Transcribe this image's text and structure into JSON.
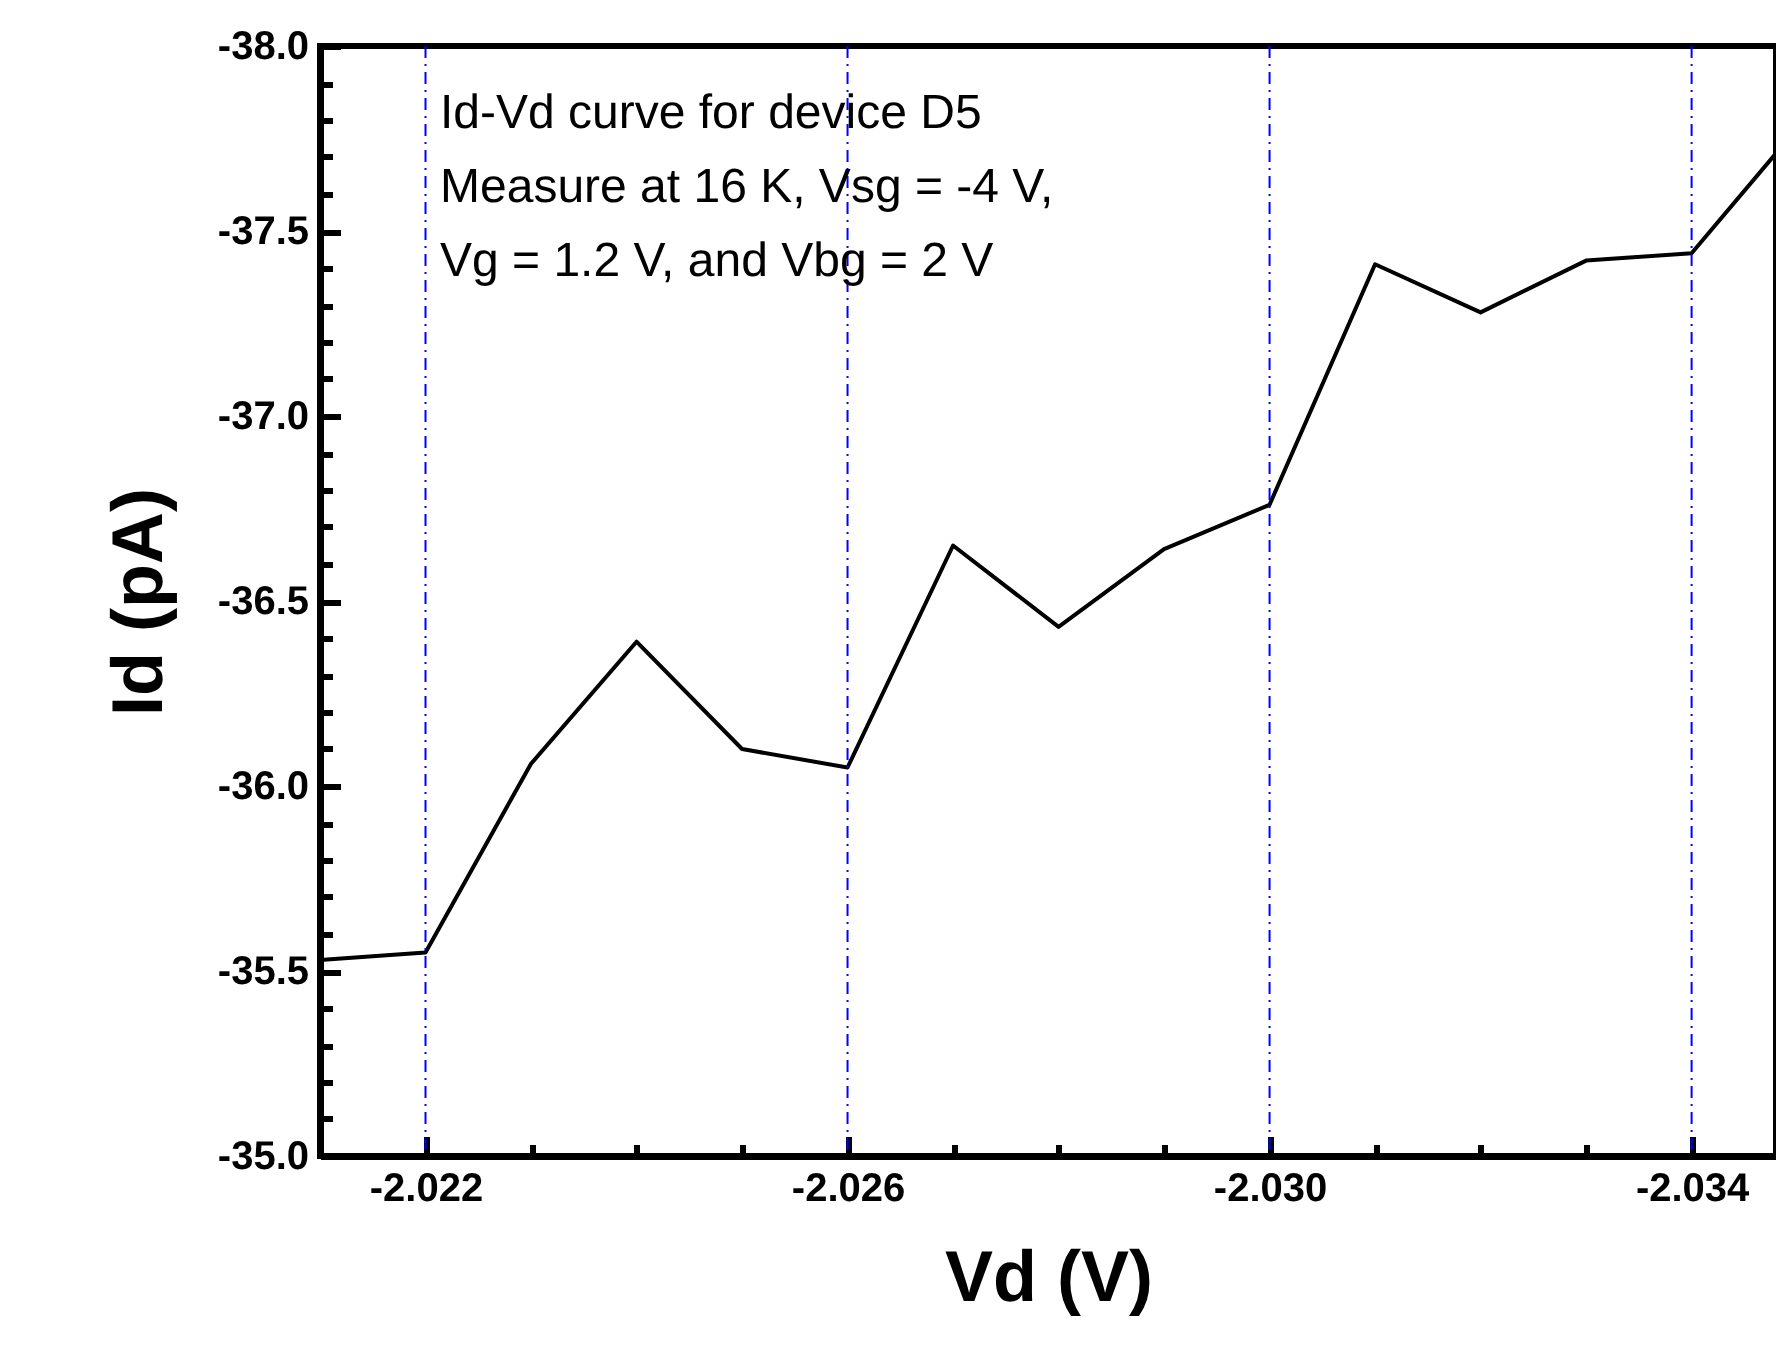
{
  "chart_data": {
    "type": "line",
    "xlabel": "Vd (V)",
    "ylabel": "Id (pA)",
    "annotations": [
      "Id-Vd curve for device D5",
      "Measure at 16 K, Vsg = -4 V,",
      "Vg = 1.2 V, and Vbg = 2 V"
    ],
    "x": [
      -2.021,
      -2.022,
      -2.023,
      -2.024,
      -2.025,
      -2.026,
      -2.027,
      -2.028,
      -2.029,
      -2.03,
      -2.031,
      -2.032,
      -2.033,
      -2.034,
      -2.0348
    ],
    "series": [
      {
        "color": "#000000",
        "values": [
          -35.53,
          -35.55,
          -36.06,
          -36.39,
          -36.1,
          -36.05,
          -36.65,
          -36.43,
          -36.64,
          -36.76,
          -37.41,
          -37.28,
          -37.42,
          -37.44,
          -37.71
        ]
      }
    ],
    "xlim": [
      -2.021,
      -2.0348
    ],
    "xticks": [
      {
        "value": -2.021,
        "label": null
      },
      {
        "value": -2.022,
        "label": "-2.022"
      },
      {
        "value": -2.023,
        "label": null
      },
      {
        "value": -2.024,
        "label": null
      },
      {
        "value": -2.025,
        "label": null
      },
      {
        "value": -2.026,
        "label": "-2.026"
      },
      {
        "value": -2.027,
        "label": null
      },
      {
        "value": -2.028,
        "label": null
      },
      {
        "value": -2.029,
        "label": null
      },
      {
        "value": -2.03,
        "label": "-2.030"
      },
      {
        "value": -2.031,
        "label": null
      },
      {
        "value": -2.032,
        "label": null
      },
      {
        "value": -2.033,
        "label": null
      },
      {
        "value": -2.034,
        "label": "-2.034"
      }
    ],
    "ylim": [
      -35.0,
      -38.0
    ],
    "yticks": [
      {
        "value": -35.0,
        "label": "-35.0"
      },
      {
        "value": -35.1,
        "label": null
      },
      {
        "value": -35.2,
        "label": null
      },
      {
        "value": -35.3,
        "label": null
      },
      {
        "value": -35.4,
        "label": null
      },
      {
        "value": -35.5,
        "label": "-35.5"
      },
      {
        "value": -35.6,
        "label": null
      },
      {
        "value": -35.7,
        "label": null
      },
      {
        "value": -35.8,
        "label": null
      },
      {
        "value": -35.9,
        "label": null
      },
      {
        "value": -36.0,
        "label": "-36.0"
      },
      {
        "value": -36.1,
        "label": null
      },
      {
        "value": -36.2,
        "label": null
      },
      {
        "value": -36.3,
        "label": null
      },
      {
        "value": -36.4,
        "label": null
      },
      {
        "value": -36.5,
        "label": "-36.5"
      },
      {
        "value": -36.6,
        "label": null
      },
      {
        "value": -36.7,
        "label": null
      },
      {
        "value": -36.8,
        "label": null
      },
      {
        "value": -36.9,
        "label": null
      },
      {
        "value": -37.0,
        "label": "-37.0"
      },
      {
        "value": -37.1,
        "label": null
      },
      {
        "value": -37.2,
        "label": null
      },
      {
        "value": -37.3,
        "label": null
      },
      {
        "value": -37.4,
        "label": null
      },
      {
        "value": -37.5,
        "label": "-37.5"
      },
      {
        "value": -37.6,
        "label": null
      },
      {
        "value": -37.7,
        "label": null
      },
      {
        "value": -37.8,
        "label": null
      },
      {
        "value": -37.9,
        "label": null
      },
      {
        "value": -38.0,
        "label": "-38.0"
      }
    ],
    "ref_lines": [
      {
        "axis": "x",
        "value": -2.022,
        "color": "#0000ff",
        "line_style": "dashed"
      },
      {
        "axis": "x",
        "value": -2.026,
        "color": "#0000ff",
        "line_style": "dashed"
      },
      {
        "axis": "x",
        "value": -2.03,
        "color": "#0000ff",
        "line_style": "dashed"
      },
      {
        "axis": "x",
        "value": -2.034,
        "color": "#0000ff",
        "line_style": "dashed"
      }
    ],
    "grid": false,
    "line_style": "solid"
  }
}
